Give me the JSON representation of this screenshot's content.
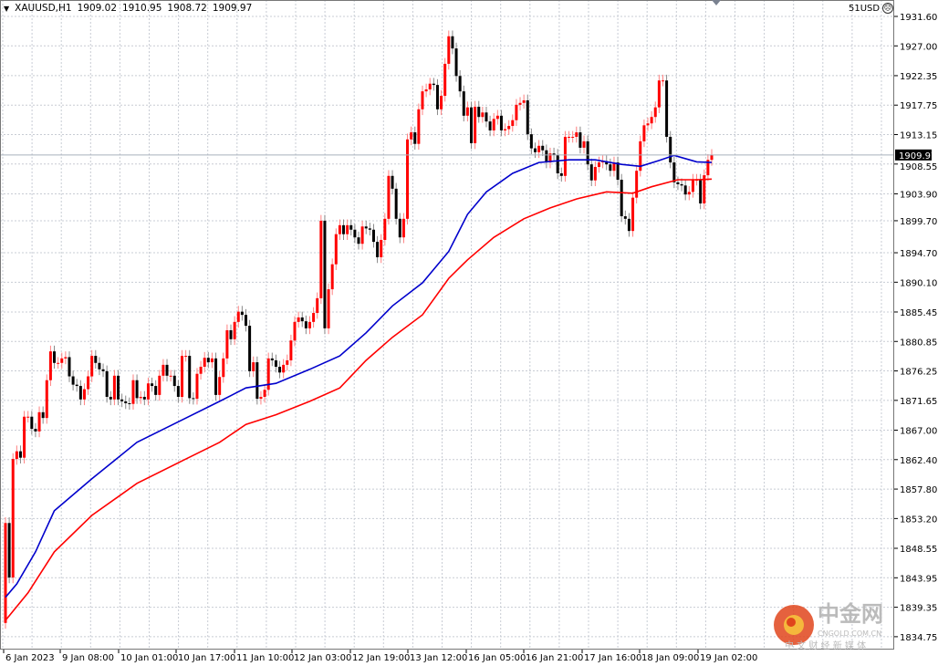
{
  "header": {
    "symbol": "XAUUSD,H1",
    "open": "1909.02",
    "high": "1910.95",
    "low": "1908.72",
    "close": "1909.97",
    "account": "51USD",
    "account_icon": "sad-face-icon"
  },
  "watermark": {
    "brand": "中金网",
    "domain": "CNGOLD.COM.CN",
    "tagline": "中 文 财 经 新 媒 体"
  },
  "chart_data": {
    "type": "candlestick",
    "symbol": "XAUUSD",
    "timeframe": "H1",
    "colors": {
      "bull": "#ff0000",
      "bear": "#000000",
      "ma_fast": "#0000cc",
      "ma_slow": "#ff0000",
      "grid": "#c8ccd4"
    },
    "grid": true,
    "ylim": [
      1832.5,
      1933.0
    ],
    "y_ticks": [
      "1931.60",
      "1927.00",
      "1922.35",
      "1917.75",
      "1913.15",
      "1908.55",
      "1903.90",
      "1899.70",
      "1894.70",
      "1890.10",
      "1885.45",
      "1880.85",
      "1876.25",
      "1871.65",
      "1867.00",
      "1862.40",
      "1857.80",
      "1853.20",
      "1848.55",
      "1843.95",
      "1839.35",
      "1834.75"
    ],
    "x_ticks": [
      "6 Jan 2023",
      "9 Jan 08:00",
      "10 Jan 01:00",
      "10 Jan 17:00",
      "11 Jan 10:00",
      "12 Jan 03:00",
      "12 Jan 19:00",
      "13 Jan 12:00",
      "16 Jan 05:00",
      "16 Jan 21:00",
      "17 Jan 16:00",
      "18 Jan 09:00",
      "19 Jan 02:00"
    ],
    "current_price": "1909.97",
    "first_open": 1836.9,
    "closes": [
      1852.5,
      1844.0,
      1862.5,
      1863.7,
      1862.7,
      1869.1,
      1869.1,
      1867.2,
      1866.8,
      1869.8,
      1868.9,
      1874.8,
      1879.3,
      1877.5,
      1877.5,
      1878.2,
      1878.4,
      1875.4,
      1874.1,
      1873.9,
      1871.8,
      1873.4,
      1875.4,
      1878.6,
      1877.5,
      1876.5,
      1876.2,
      1872.2,
      1871.8,
      1875.5,
      1871.8,
      1871.5,
      1871.2,
      1871.1,
      1874.8,
      1872.0,
      1872.2,
      1871.8,
      1874.3,
      1873.9,
      1872.5,
      1875.5,
      1877.2,
      1875.5,
      1875.5,
      1873.9,
      1872.2,
      1878.6,
      1878.6,
      1872.0,
      1871.9,
      1875.8,
      1876.9,
      1878.3,
      1877.6,
      1878.2,
      1872.5,
      1875.3,
      1878.2,
      1882.6,
      1881.2,
      1883.9,
      1885.5,
      1885.0,
      1883.3,
      1876.2,
      1877.6,
      1871.9,
      1872.2,
      1873.3,
      1878.2,
      1877.9,
      1876.9,
      1876.0,
      1877.2,
      1877.9,
      1881.0,
      1883.9,
      1884.6,
      1884.0,
      1882.9,
      1883.9,
      1885.3,
      1887.6,
      1899.7,
      1882.9,
      1889.0,
      1892.9,
      1897.6,
      1899.0,
      1897.6,
      1899.0,
      1898.3,
      1897.1,
      1896.1,
      1898.8,
      1898.5,
      1898.3,
      1896.4,
      1894.0,
      1896.7,
      1900.0,
      1906.7,
      1904.7,
      1900.0,
      1897.1,
      1900.0,
      1912.4,
      1913.5,
      1911.7,
      1917.1,
      1919.9,
      1920.2,
      1921.1,
      1920.9,
      1917.1,
      1919.2,
      1924.2,
      1928.5,
      1926.6,
      1922.3,
      1919.9,
      1916.1,
      1917.4,
      1911.8,
      1917.5,
      1915.9,
      1916.6,
      1915.2,
      1913.8,
      1915.6,
      1916.1,
      1913.8,
      1914.0,
      1914.5,
      1915.4,
      1917.8,
      1918.1,
      1918.5,
      1913.2,
      1911.0,
      1910.4,
      1911.4,
      1910.7,
      1908.8,
      1910.2,
      1910.0,
      1907.1,
      1906.7,
      1912.8,
      1912.8,
      1912.8,
      1913.5,
      1911.1,
      1912.1,
      1908.5,
      1906.0,
      1908.1,
      1908.8,
      1909.0,
      1908.5,
      1907.5,
      1908.8,
      1906.1,
      1900.4,
      1900.0,
      1898.1,
      1903.3,
      1907.5,
      1912.1,
      1914.6,
      1914.9,
      1915.9,
      1917.4,
      1921.6,
      1921.6,
      1912.8,
      1908.8,
      1905.7,
      1905.4,
      1905.2,
      1903.8,
      1904.2,
      1906.1,
      1906.1,
      1902.4,
      1906.8,
      1909.2,
      1909.97
    ],
    "ma_fast": [
      [
        0,
        1840.9
      ],
      [
        3,
        1843.0
      ],
      [
        8,
        1848.0
      ],
      [
        13,
        1854.4
      ],
      [
        23,
        1859.4
      ],
      [
        35,
        1865.1
      ],
      [
        47,
        1868.6
      ],
      [
        57,
        1871.5
      ],
      [
        64,
        1873.6
      ],
      [
        72,
        1874.3
      ],
      [
        81,
        1876.5
      ],
      [
        89,
        1878.6
      ],
      [
        96,
        1882.2
      ],
      [
        103,
        1886.4
      ],
      [
        111,
        1890.0
      ],
      [
        118,
        1894.9
      ],
      [
        123,
        1900.7
      ],
      [
        128,
        1904.2
      ],
      [
        135,
        1907.1
      ],
      [
        142,
        1908.8
      ],
      [
        150,
        1909.2
      ],
      [
        157,
        1909.2
      ],
      [
        164,
        1908.5
      ],
      [
        169,
        1908.2
      ],
      [
        174,
        1909.1
      ],
      [
        178,
        1909.9
      ],
      [
        184,
        1908.9
      ],
      [
        188,
        1908.8
      ]
    ],
    "ma_slow": [
      [
        0,
        1837.3
      ],
      [
        6,
        1841.6
      ],
      [
        13,
        1848.0
      ],
      [
        23,
        1853.7
      ],
      [
        35,
        1858.7
      ],
      [
        47,
        1862.2
      ],
      [
        57,
        1865.1
      ],
      [
        64,
        1867.9
      ],
      [
        72,
        1869.4
      ],
      [
        81,
        1871.5
      ],
      [
        89,
        1873.6
      ],
      [
        96,
        1877.9
      ],
      [
        103,
        1881.5
      ],
      [
        111,
        1885.0
      ],
      [
        118,
        1890.7
      ],
      [
        123,
        1893.6
      ],
      [
        130,
        1897.1
      ],
      [
        138,
        1900.0
      ],
      [
        145,
        1901.7
      ],
      [
        152,
        1903.1
      ],
      [
        160,
        1904.2
      ],
      [
        167,
        1904.0
      ],
      [
        172,
        1905.0
      ],
      [
        179,
        1906.1
      ],
      [
        184,
        1906.1
      ],
      [
        188,
        1906.2
      ]
    ]
  }
}
